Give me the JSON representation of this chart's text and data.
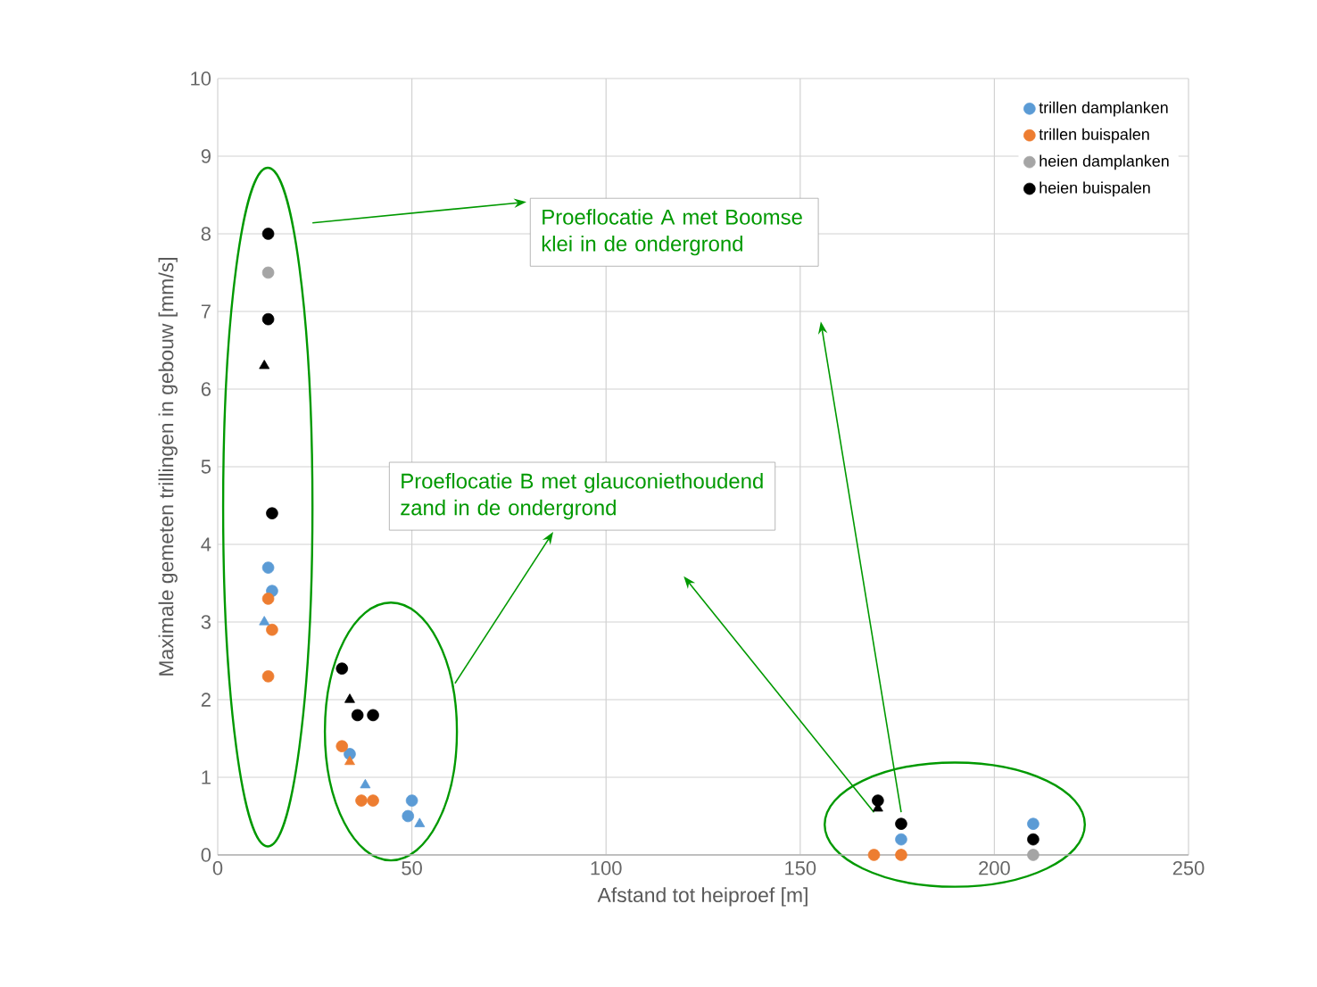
{
  "chart_data": {
    "type": "scatter",
    "xlabel": "Afstand tot heiproef [m]",
    "ylabel": "Maximale gemeten trillingen in gebouw [mm/s]",
    "xlim": [
      0,
      250
    ],
    "xticks": [
      0,
      50,
      100,
      150,
      200,
      250
    ],
    "ylim": [
      0,
      10
    ],
    "yticks": [
      0,
      1,
      2,
      3,
      4,
      5,
      6,
      7,
      8,
      9,
      10
    ],
    "grid": true,
    "legend": "top right",
    "marker": "circle",
    "series": [
      {
        "name": "trillen damplanken",
        "color": "#5b9bd5",
        "x": [
          13,
          14,
          34,
          50,
          49,
          176,
          210
        ],
        "values": [
          3.7,
          3.4,
          1.3,
          0.7,
          0.5,
          0.2,
          0.4
        ]
      },
      {
        "name": "trillen buispalen",
        "color": "#ed7d31",
        "x": [
          13,
          14,
          13,
          32,
          37,
          40,
          169,
          176
        ],
        "values": [
          3.3,
          2.9,
          2.3,
          1.4,
          0.7,
          0.7,
          0,
          0
        ]
      },
      {
        "name": "heien damplanken",
        "color": "#a5a5a5",
        "x": [
          13,
          210
        ],
        "values": [
          7.5,
          0
        ]
      },
      {
        "name": "heien buispalen",
        "color": "#000000",
        "x": [
          13,
          13,
          14,
          32,
          36,
          40,
          170,
          176,
          210
        ],
        "values": [
          8,
          6.9,
          4.4,
          2.4,
          1.8,
          1.8,
          0.7,
          0.4,
          0.2
        ]
      },
      {
        "color": "#000000",
        "marker": "triangle",
        "x": [
          12,
          34,
          170
        ],
        "values": [
          6.3,
          2,
          0.6
        ]
      },
      {
        "color": "#5b9bd5",
        "marker": "triangle",
        "x": [
          12,
          38,
          52
        ],
        "values": [
          3,
          0.9,
          0.4
        ]
      },
      {
        "color": "#ed7d31",
        "marker": "triangle",
        "x": [
          34,
          176
        ],
        "values": [
          1.2,
          0
        ]
      }
    ],
    "annotations": [
      "Proeflocatie A met Boomse klei in de ondergrond",
      "Proeflocatie B met glauconiethoudend zand in de ondergrond"
    ]
  }
}
